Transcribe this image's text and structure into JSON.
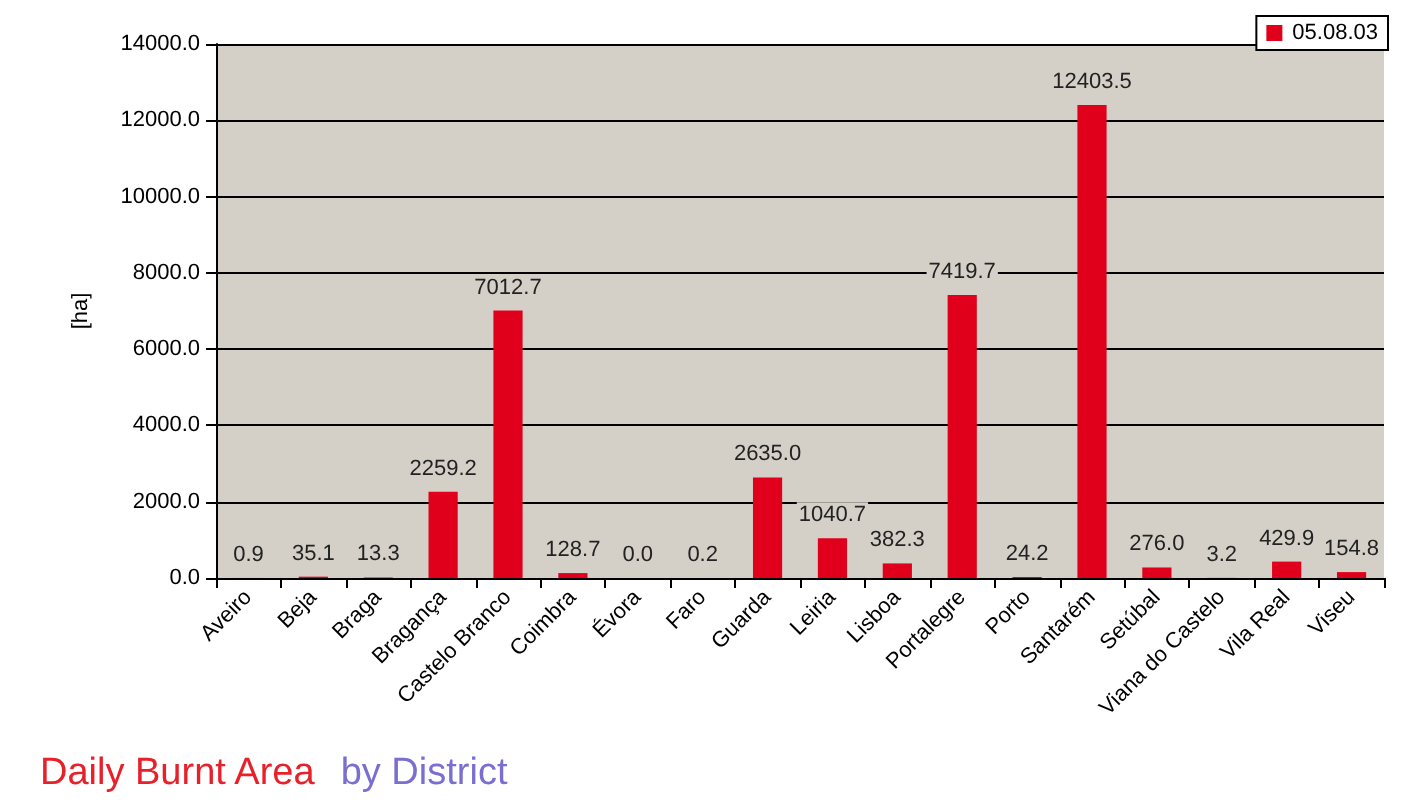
{
  "chart_data": {
    "type": "bar",
    "title": "Daily Burnt Area",
    "subtitle": "by District",
    "ylabel": "[ha]",
    "categories": [
      "Aveiro",
      "Beja",
      "Braga",
      "Bragança",
      "Castelo Branco",
      "Coimbra",
      "Évora",
      "Faro",
      "Guarda",
      "Leiria",
      "Lisboa",
      "Portalegre",
      "Porto",
      "Santarém",
      "Setúbal",
      "Viana do Castelo",
      "Vila Real",
      "Viseu"
    ],
    "series": [
      {
        "name": "05.08.03",
        "color": "#e0001b",
        "values": [
          0.9,
          35.1,
          13.3,
          2259.2,
          7012.7,
          128.7,
          0.0,
          0.2,
          2635.0,
          1040.7,
          382.3,
          7419.7,
          24.2,
          12403.5,
          276.0,
          3.2,
          429.9,
          154.8
        ],
        "value_labels": [
          "0.9",
          "35.1",
          "13.3",
          "2259.2",
          "7012.7",
          "128.7",
          "0.0",
          "0.2",
          "2635.0",
          "1040.7",
          "382.3",
          "7419.7",
          "24.2",
          "12403.5",
          "276.0",
          "3.2",
          "429.9",
          "154.8"
        ]
      }
    ],
    "ylim": [
      0,
      14000
    ],
    "yticks": [
      {
        "value": 0,
        "label": "0.0"
      },
      {
        "value": 2000,
        "label": "2000.0"
      },
      {
        "value": 4000,
        "label": "4000.0"
      },
      {
        "value": 6000,
        "label": "6000.0"
      },
      {
        "value": 8000,
        "label": "8000.0"
      },
      {
        "value": 10000,
        "label": "10000.0"
      },
      {
        "value": 12000,
        "label": "12000.0"
      },
      {
        "value": 14000,
        "label": "14000.0"
      }
    ],
    "grid": "y",
    "legend": "top right"
  }
}
